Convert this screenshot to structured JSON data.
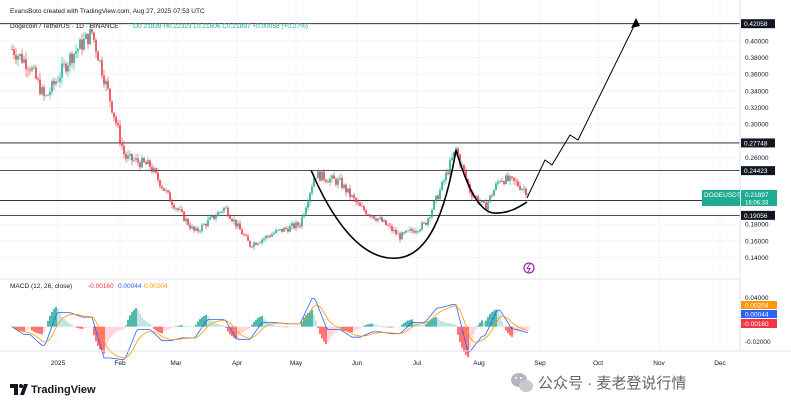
{
  "header": {
    "created_by": "EvansBoto created with TradingView.com, Aug 27, 2025 07:53 UTC",
    "symbol": "Dogecoin / TetherUS · 1D · BINANCE",
    "ohlc": "O0.21839 H0.22323 L0.21606 C0.21897 +0.00058 (+0.27%)",
    "colors": {
      "up": "#22ab94",
      "down": "#f23645",
      "text": "#131722"
    }
  },
  "macd_label": {
    "title": "MACD (12, 26, close)",
    "v1": "-0.00160",
    "v2": "0.00044",
    "v3": "0.00204"
  },
  "price_tag": {
    "symbol": "DOGEUSDT",
    "price": "0.21897",
    "countdown": "16:06:33"
  },
  "logo": {
    "text": "TradingView"
  },
  "watermark": {
    "text": "公众号 · 麦老登说行情"
  },
  "chart_data": [
    {
      "type": "candlestick",
      "title": "Dogecoin / TetherUS · 1D · BINANCE",
      "x_ticks": [
        "2025",
        "Feb",
        "Mar",
        "Apr",
        "May",
        "Jun",
        "Jul",
        "Aug",
        "Sep",
        "Oct",
        "Nov",
        "Dec"
      ],
      "y_ticks": [
        "0.40000",
        "0.38000",
        "0.36000",
        "0.34000",
        "0.32000",
        "0.30000",
        "0.26000",
        "0.18000",
        "0.16000",
        "0.14000"
      ],
      "ylim": [
        0.125,
        0.425
      ],
      "grid": true,
      "levels": [
        0.42058,
        0.27748,
        0.24423,
        0.20845,
        0.19056
      ],
      "level_labels": [
        "0.42058",
        "0.27748",
        "0.24423",
        "0.20845",
        "0.19056"
      ],
      "approx_closes_monthly": [
        {
          "x": "2025",
          "close": 0.4
        },
        {
          "x": "Feb",
          "close": 0.26
        },
        {
          "x": "Mar",
          "close": 0.17
        },
        {
          "x": "Apr",
          "close": 0.16
        },
        {
          "x": "May",
          "close": 0.23
        },
        {
          "x": "Jun",
          "close": 0.17
        },
        {
          "x": "Jul",
          "close": 0.18
        },
        {
          "x": "Aug",
          "close": 0.22
        }
      ],
      "annotations": [
        "cup-and-handle curve",
        "projection arrow to 0.42058"
      ]
    },
    {
      "type": "macd",
      "title": "MACD (12, 26, close)",
      "y_ticks": [
        "0.04000",
        "-0.02000"
      ],
      "ylim": [
        -0.025,
        0.05
      ],
      "last_values": {
        "histogram": -0.0016,
        "macd": 0.00044,
        "signal": 0.00204
      }
    }
  ]
}
